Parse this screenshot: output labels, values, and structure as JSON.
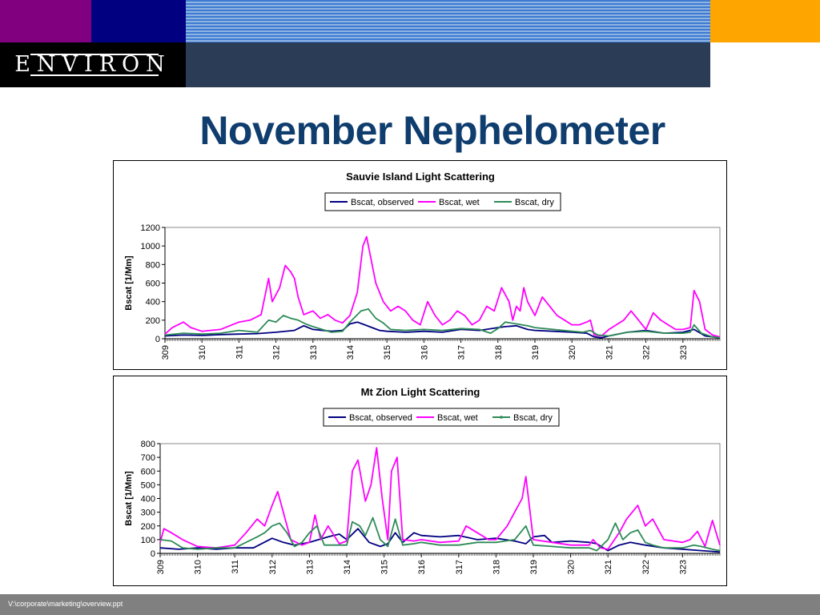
{
  "header": {
    "logo_text": "ENVIRON",
    "colors": {
      "purple": "#800080",
      "navy": "#000080",
      "orange": "#ffa500",
      "slate": "#2b3d56",
      "title": "#0f3d6e"
    }
  },
  "slide": {
    "title": "November Nephelometer"
  },
  "footer": {
    "path": "V:\\corporate\\marketing\\overview.ppt"
  },
  "chart_data": [
    {
      "type": "line",
      "title": "Sauvie Island Light Scattering",
      "xlabel": "",
      "ylabel": "Bscat [1/Mm]",
      "xlim": [
        309,
        324
      ],
      "ylim": [
        0,
        1200
      ],
      "yticks": [
        0,
        200,
        400,
        600,
        800,
        1000,
        1200
      ],
      "xticks": [
        "309",
        "310",
        "311",
        "312",
        "313",
        "314",
        "315",
        "316",
        "317",
        "318",
        "319",
        "320",
        "321",
        "322",
        "323"
      ],
      "legend": "top",
      "grid": false,
      "series": [
        {
          "name": "Bscat, observed",
          "color": "#000080",
          "x": [
            309,
            309.5,
            310,
            310.5,
            311,
            311.5,
            312,
            312.5,
            312.75,
            313,
            313.5,
            313.8,
            314,
            314.2,
            314.4,
            314.6,
            314.8,
            315,
            315.5,
            316,
            316.5,
            317,
            317.5,
            318,
            318.2,
            318.5,
            318.8,
            319,
            319.5,
            320,
            320.4,
            320.6,
            320.8,
            321,
            321.5,
            322,
            322.5,
            323,
            323.3,
            323.6,
            324
          ],
          "values": [
            30,
            40,
            35,
            45,
            50,
            55,
            70,
            90,
            140,
            100,
            80,
            90,
            160,
            180,
            150,
            120,
            90,
            80,
            70,
            80,
            70,
            100,
            90,
            120,
            130,
            140,
            100,
            90,
            80,
            70,
            60,
            20,
            10,
            30,
            70,
            90,
            60,
            70,
            100,
            30,
            10
          ]
        },
        {
          "name": "Bscat, wet",
          "color": "#ff00ff",
          "x": [
            309,
            309.2,
            309.5,
            309.7,
            310,
            310.5,
            311,
            311.3,
            311.6,
            311.8,
            311.9,
            312.1,
            312.25,
            312.4,
            312.5,
            312.6,
            312.75,
            313,
            313.2,
            313.4,
            313.6,
            313.8,
            314,
            314.2,
            314.35,
            314.45,
            314.55,
            314.7,
            314.9,
            315.1,
            315.3,
            315.5,
            315.7,
            315.9,
            316.1,
            316.3,
            316.5,
            316.7,
            316.9,
            317.1,
            317.3,
            317.5,
            317.7,
            317.9,
            318.1,
            318.3,
            318.4,
            318.5,
            318.6,
            318.7,
            318.8,
            319,
            319.2,
            319.4,
            319.6,
            319.8,
            320,
            320.2,
            320.4,
            320.5,
            320.6,
            320.8,
            321,
            321.2,
            321.4,
            321.6,
            321.8,
            322,
            322.2,
            322.4,
            322.6,
            322.8,
            323,
            323.2,
            323.3,
            323.45,
            323.6,
            323.8,
            324
          ],
          "values": [
            50,
            120,
            180,
            120,
            80,
            100,
            180,
            200,
            260,
            650,
            400,
            550,
            790,
            720,
            650,
            450,
            260,
            300,
            220,
            260,
            200,
            170,
            250,
            500,
            1000,
            1100,
            900,
            600,
            400,
            300,
            350,
            300,
            200,
            150,
            400,
            250,
            150,
            200,
            300,
            250,
            150,
            200,
            350,
            300,
            550,
            400,
            200,
            350,
            300,
            550,
            400,
            250,
            450,
            350,
            250,
            200,
            150,
            150,
            180,
            200,
            40,
            30,
            100,
            150,
            200,
            300,
            200,
            100,
            280,
            200,
            150,
            100,
            100,
            120,
            520,
            400,
            100,
            40,
            20
          ]
        },
        {
          "name": "Bscat, dry",
          "color": "#2e8b57",
          "x": [
            309,
            309.5,
            310,
            310.5,
            311,
            311.5,
            311.8,
            312,
            312.2,
            312.4,
            312.6,
            312.8,
            313,
            313.5,
            313.8,
            314,
            314.3,
            314.5,
            314.7,
            314.9,
            315.1,
            315.5,
            316,
            316.5,
            317,
            317.5,
            317.8,
            318,
            318.2,
            318.5,
            318.8,
            319,
            319.5,
            320,
            320.3,
            320.5,
            320.7,
            321,
            321.5,
            322,
            322.5,
            323,
            323.2,
            323.3,
            323.5,
            323.8,
            324
          ],
          "values": [
            40,
            60,
            50,
            60,
            90,
            70,
            200,
            180,
            250,
            220,
            200,
            160,
            130,
            70,
            80,
            180,
            300,
            320,
            220,
            170,
            100,
            90,
            100,
            90,
            110,
            100,
            60,
            110,
            180,
            160,
            140,
            120,
            100,
            80,
            70,
            90,
            40,
            30,
            70,
            80,
            60,
            60,
            70,
            150,
            60,
            20,
            10
          ]
        }
      ]
    },
    {
      "type": "line",
      "title": "Mt Zion Light Scattering",
      "xlabel": "",
      "ylabel": "Bscat [1/Mm]",
      "xlim": [
        309,
        324
      ],
      "ylim": [
        0,
        800
      ],
      "yticks": [
        0,
        100,
        200,
        300,
        400,
        500,
        600,
        700,
        800
      ],
      "xticks": [
        "309",
        "310",
        "311",
        "312",
        "313",
        "314",
        "315",
        "316",
        "317",
        "318",
        "319",
        "320",
        "321",
        "322",
        "323"
      ],
      "legend": "top",
      "grid": false,
      "series": [
        {
          "name": "Bscat, observed",
          "color": "#000080",
          "x": [
            309,
            309.5,
            310,
            310.5,
            311,
            311.5,
            312,
            312.3,
            312.6,
            313,
            313.5,
            313.8,
            314,
            314.3,
            314.6,
            314.9,
            315.1,
            315.3,
            315.5,
            315.8,
            316,
            316.5,
            317,
            317.5,
            318,
            318.5,
            318.8,
            319,
            319.3,
            319.5,
            320,
            320.5,
            320.7,
            321,
            321.3,
            321.6,
            322,
            322.5,
            323,
            323.5,
            324
          ],
          "values": [
            40,
            30,
            40,
            30,
            40,
            40,
            110,
            80,
            60,
            80,
            120,
            140,
            100,
            180,
            80,
            50,
            70,
            150,
            80,
            150,
            130,
            120,
            130,
            100,
            110,
            90,
            70,
            120,
            130,
            80,
            90,
            80,
            70,
            20,
            60,
            80,
            60,
            40,
            30,
            20,
            10
          ]
        },
        {
          "name": "Bscat, wet",
          "color": "#ff00ff",
          "x": [
            309,
            309.1,
            309.3,
            309.6,
            310,
            310.5,
            311,
            311.3,
            311.6,
            311.8,
            312,
            312.15,
            312.3,
            312.5,
            312.8,
            313,
            313.15,
            313.3,
            313.5,
            313.8,
            314,
            314.15,
            314.3,
            314.5,
            314.65,
            314.8,
            314.95,
            315.1,
            315.2,
            315.35,
            315.5,
            315.8,
            316,
            316.5,
            317,
            317.2,
            317.5,
            317.8,
            318,
            318.3,
            318.5,
            318.7,
            318.8,
            319,
            319.5,
            320,
            320.5,
            320.6,
            320.8,
            321,
            321.3,
            321.5,
            321.8,
            322,
            322.2,
            322.5,
            323,
            323.2,
            323.4,
            323.6,
            323.8,
            324
          ],
          "values": [
            80,
            180,
            150,
            100,
            50,
            40,
            60,
            150,
            250,
            200,
            350,
            450,
            300,
            100,
            60,
            80,
            280,
            100,
            200,
            70,
            90,
            600,
            680,
            380,
            500,
            770,
            400,
            100,
            600,
            700,
            100,
            90,
            100,
            80,
            90,
            200,
            150,
            100,
            100,
            200,
            300,
            400,
            560,
            100,
            80,
            60,
            60,
            100,
            40,
            30,
            150,
            250,
            350,
            200,
            250,
            100,
            80,
            100,
            160,
            50,
            240,
            60
          ]
        },
        {
          "name": "Bscat, dry",
          "color": "#2e8b57",
          "x": [
            309,
            309.3,
            309.6,
            310,
            310.5,
            311,
            311.3,
            311.6,
            311.8,
            312,
            312.2,
            312.4,
            312.6,
            312.8,
            313,
            313.2,
            313.4,
            313.6,
            314,
            314.15,
            314.35,
            314.5,
            314.7,
            314.9,
            315.1,
            315.3,
            315.5,
            315.8,
            316,
            316.5,
            317,
            317.5,
            318,
            318.5,
            318.8,
            319,
            319.5,
            320,
            320.5,
            320.7,
            321,
            321.2,
            321.4,
            321.6,
            321.8,
            322,
            322.2,
            322.5,
            323,
            323.3,
            323.5,
            323.8,
            324
          ],
          "values": [
            100,
            90,
            40,
            30,
            40,
            40,
            80,
            120,
            150,
            200,
            220,
            150,
            50,
            80,
            150,
            200,
            60,
            60,
            60,
            230,
            200,
            130,
            260,
            100,
            50,
            250,
            60,
            70,
            80,
            60,
            60,
            80,
            80,
            100,
            200,
            60,
            50,
            40,
            40,
            20,
            100,
            220,
            100,
            150,
            170,
            80,
            60,
            40,
            40,
            60,
            50,
            30,
            20
          ]
        }
      ]
    }
  ]
}
